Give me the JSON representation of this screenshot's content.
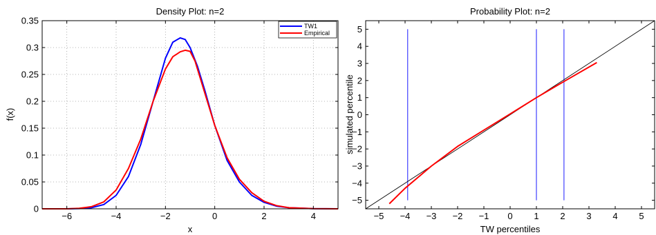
{
  "chart_data": [
    {
      "type": "line",
      "title": "Density Plot: n=2",
      "xlabel": "x",
      "ylabel": "f(x)",
      "xlim": [
        -7,
        5
      ],
      "ylim": [
        0,
        0.35
      ],
      "xticks": [
        -6,
        -4,
        -2,
        0,
        2,
        4
      ],
      "xtick_labels": [
        "−6",
        "−4",
        "−2",
        "0",
        "2",
        "4"
      ],
      "yticks": [
        0,
        0.05,
        0.1,
        0.15,
        0.2,
        0.25,
        0.3,
        0.35
      ],
      "ytick_labels": [
        "0",
        "0.05",
        "0.1",
        "0.15",
        "0.2",
        "0.25",
        "0.3",
        "0.35"
      ],
      "grid": true,
      "legend_position": "top-right",
      "series": [
        {
          "name": "TW1",
          "color": "#0000ff",
          "x": [
            -7,
            -6,
            -5.5,
            -5,
            -4.5,
            -4,
            -3.5,
            -3,
            -2.5,
            -2,
            -1.7,
            -1.4,
            -1.2,
            -1,
            -0.7,
            -0.4,
            0,
            0.5,
            1,
            1.5,
            2,
            2.5,
            3,
            4,
            5
          ],
          "y": [
            0,
            0,
            0.0005,
            0.002,
            0.008,
            0.025,
            0.06,
            0.12,
            0.2,
            0.28,
            0.31,
            0.318,
            0.315,
            0.3,
            0.265,
            0.22,
            0.155,
            0.09,
            0.05,
            0.025,
            0.012,
            0.005,
            0.002,
            0.0003,
            0
          ]
        },
        {
          "name": "Empirical",
          "color": "#ff0000",
          "x": [
            -7,
            -6,
            -5.5,
            -5,
            -4.5,
            -4,
            -3.5,
            -3,
            -2.5,
            -2,
            -1.7,
            -1.4,
            -1.2,
            -1,
            -0.8,
            -0.5,
            0,
            0.5,
            1,
            1.5,
            2,
            2.5,
            3,
            4,
            5
          ],
          "y": [
            0,
            0,
            0.001,
            0.004,
            0.013,
            0.035,
            0.075,
            0.13,
            0.2,
            0.26,
            0.283,
            0.292,
            0.295,
            0.293,
            0.275,
            0.23,
            0.155,
            0.095,
            0.055,
            0.03,
            0.014,
            0.006,
            0.002,
            0.0003,
            0
          ]
        }
      ]
    },
    {
      "type": "line",
      "title": "Probability Plot: n=2",
      "xlabel": "TW percentiles",
      "ylabel": "simulated percentile",
      "xlim": [
        -5.5,
        5.5
      ],
      "ylim": [
        -5.5,
        5.5
      ],
      "xticks": [
        -5,
        -4,
        -3,
        -2,
        -1,
        0,
        1,
        2,
        3,
        4,
        5
      ],
      "xtick_labels": [
        "−5",
        "−4",
        "−3",
        "−2",
        "−1",
        "0",
        "1",
        "2",
        "3",
        "4",
        "5"
      ],
      "yticks": [
        -5,
        -4,
        -3,
        -2,
        -1,
        0,
        1,
        2,
        3,
        4,
        5
      ],
      "ytick_labels": [
        "−5",
        "−4",
        "−3",
        "−2",
        "−1",
        "0",
        "1",
        "2",
        "3",
        "4",
        "5"
      ],
      "grid": false,
      "series": [
        {
          "color": "#000000",
          "x": [
            -5.5,
            5.5
          ],
          "y": [
            -5.5,
            5.5
          ]
        },
        {
          "color": "#ff0000",
          "x": [
            -4.6,
            -4,
            -3,
            -2,
            -1,
            0,
            1,
            2,
            3.3
          ],
          "y": [
            -5.2,
            -4.3,
            -3.0,
            -1.85,
            -0.9,
            0.05,
            1.0,
            1.9,
            3.05
          ]
        }
      ],
      "vertical_lines": {
        "color": "#0000ff",
        "x": [
          -3.9,
          1.0,
          2.05
        ],
        "y_range": [
          -5,
          5
        ]
      }
    }
  ]
}
